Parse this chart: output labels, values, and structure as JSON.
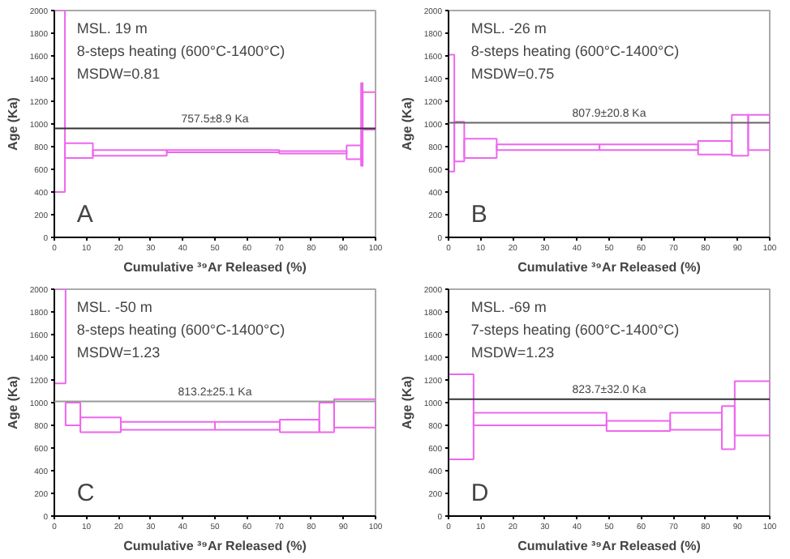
{
  "chart_data": [
    {
      "type": "histogram",
      "xlabel": "Cumulative ³⁹Ar Released (%)",
      "ylabel": "Age (Ka)",
      "annotations": [
        "MSL. 19 m",
        "8-steps heating (600°C-1400°C)",
        "MSDW=0.81",
        "A"
      ],
      "bins": [
        0,
        3.3,
        12,
        35,
        70,
        91,
        95.5,
        96,
        100
      ],
      "base": [
        400,
        700,
        720,
        750,
        740,
        690,
        630,
        950
      ],
      "values": [
        1600,
        130,
        50,
        20,
        20,
        120,
        730,
        330
      ],
      "color": "#ee66ee",
      "xlim": [
        0,
        100
      ],
      "ylim": [
        0,
        2000
      ],
      "xticks": [
        0,
        10,
        20,
        30,
        40,
        50,
        60,
        70,
        80,
        90,
        100
      ],
      "yticks": [
        0,
        200,
        400,
        600,
        800,
        1000,
        1200,
        1400,
        1600,
        1800,
        2000
      ],
      "ref_lines": [
        {
          "axis": "y",
          "value": 960,
          "label": "757.5±8.9 Ka",
          "color": "#333333"
        }
      ],
      "grid": false
    },
    {
      "type": "histogram",
      "xlabel": "Cumulative ³⁹Ar Released (%)",
      "ylabel": "Age (Ka)",
      "annotations": [
        "MSL. -26 m",
        "8-steps heating (600°C-1400°C)",
        "MSDW=0.75",
        "B"
      ],
      "bins": [
        0,
        1.8,
        4.9,
        15,
        47,
        77.7,
        88.2,
        93.3,
        100
      ],
      "base": [
        580,
        670,
        700,
        770,
        770,
        730,
        720,
        770
      ],
      "values": [
        1030,
        350,
        170,
        50,
        50,
        120,
        360,
        310
      ],
      "color": "#ee66ee",
      "xlim": [
        0,
        100
      ],
      "ylim": [
        0,
        2000
      ],
      "xticks": [
        0,
        10,
        20,
        30,
        40,
        50,
        60,
        70,
        80,
        90,
        100
      ],
      "yticks": [
        0,
        200,
        400,
        600,
        800,
        1000,
        1200,
        1400,
        1600,
        1800,
        2000
      ],
      "ref_lines": [
        {
          "axis": "y",
          "value": 1010,
          "label": "807.9±20.8 Ka",
          "color": "#666666"
        }
      ],
      "grid": false
    },
    {
      "type": "histogram",
      "xlabel": "Cumulative ³⁹Ar Released (%)",
      "ylabel": "Age (Ka)",
      "annotations": [
        "MSL. -50 m",
        "8-steps heating (600°C-1400°C)",
        "MSDW=1.23",
        "C"
      ],
      "bins": [
        0,
        3.5,
        8.1,
        20.7,
        50,
        70.2,
        82.5,
        87.1,
        100
      ],
      "base": [
        1170,
        800,
        740,
        760,
        760,
        740,
        740,
        780
      ],
      "values": [
        830,
        200,
        130,
        70,
        70,
        110,
        260,
        250
      ],
      "color": "#ee66ee",
      "xlim": [
        0,
        100
      ],
      "ylim": [
        0,
        2000
      ],
      "xticks": [
        0,
        10,
        20,
        30,
        40,
        50,
        60,
        70,
        80,
        90,
        100
      ],
      "yticks": [
        0,
        200,
        400,
        600,
        800,
        1000,
        1200,
        1400,
        1600,
        1800,
        2000
      ],
      "ref_lines": [
        {
          "axis": "y",
          "value": 1010,
          "label": "813.2±25.1 Ka",
          "color": "#999999"
        }
      ],
      "grid": false
    },
    {
      "type": "histogram",
      "xlabel": "Cumulative ³⁹Ar Released (%)",
      "ylabel": "Age (Ka)",
      "annotations": [
        "MSL. -69 m",
        "7-steps heating (600°C-1400°C)",
        "MSDW=1.23",
        "D"
      ],
      "bins": [
        0,
        7.8,
        49.2,
        69,
        85.1,
        89.1,
        100
      ],
      "base": [
        500,
        800,
        750,
        760,
        590,
        710
      ],
      "values": [
        750,
        110,
        90,
        150,
        380,
        480
      ],
      "color": "#ee66ee",
      "xlim": [
        0,
        100
      ],
      "ylim": [
        0,
        2000
      ],
      "xticks": [
        0,
        10,
        20,
        30,
        40,
        50,
        60,
        70,
        80,
        90,
        100
      ],
      "yticks": [
        0,
        200,
        400,
        600,
        800,
        1000,
        1200,
        1400,
        1600,
        1800,
        2000
      ],
      "ref_lines": [
        {
          "axis": "y",
          "value": 1030,
          "label": "823.7±32.0 Ka",
          "color": "#333333"
        }
      ],
      "grid": false
    }
  ]
}
